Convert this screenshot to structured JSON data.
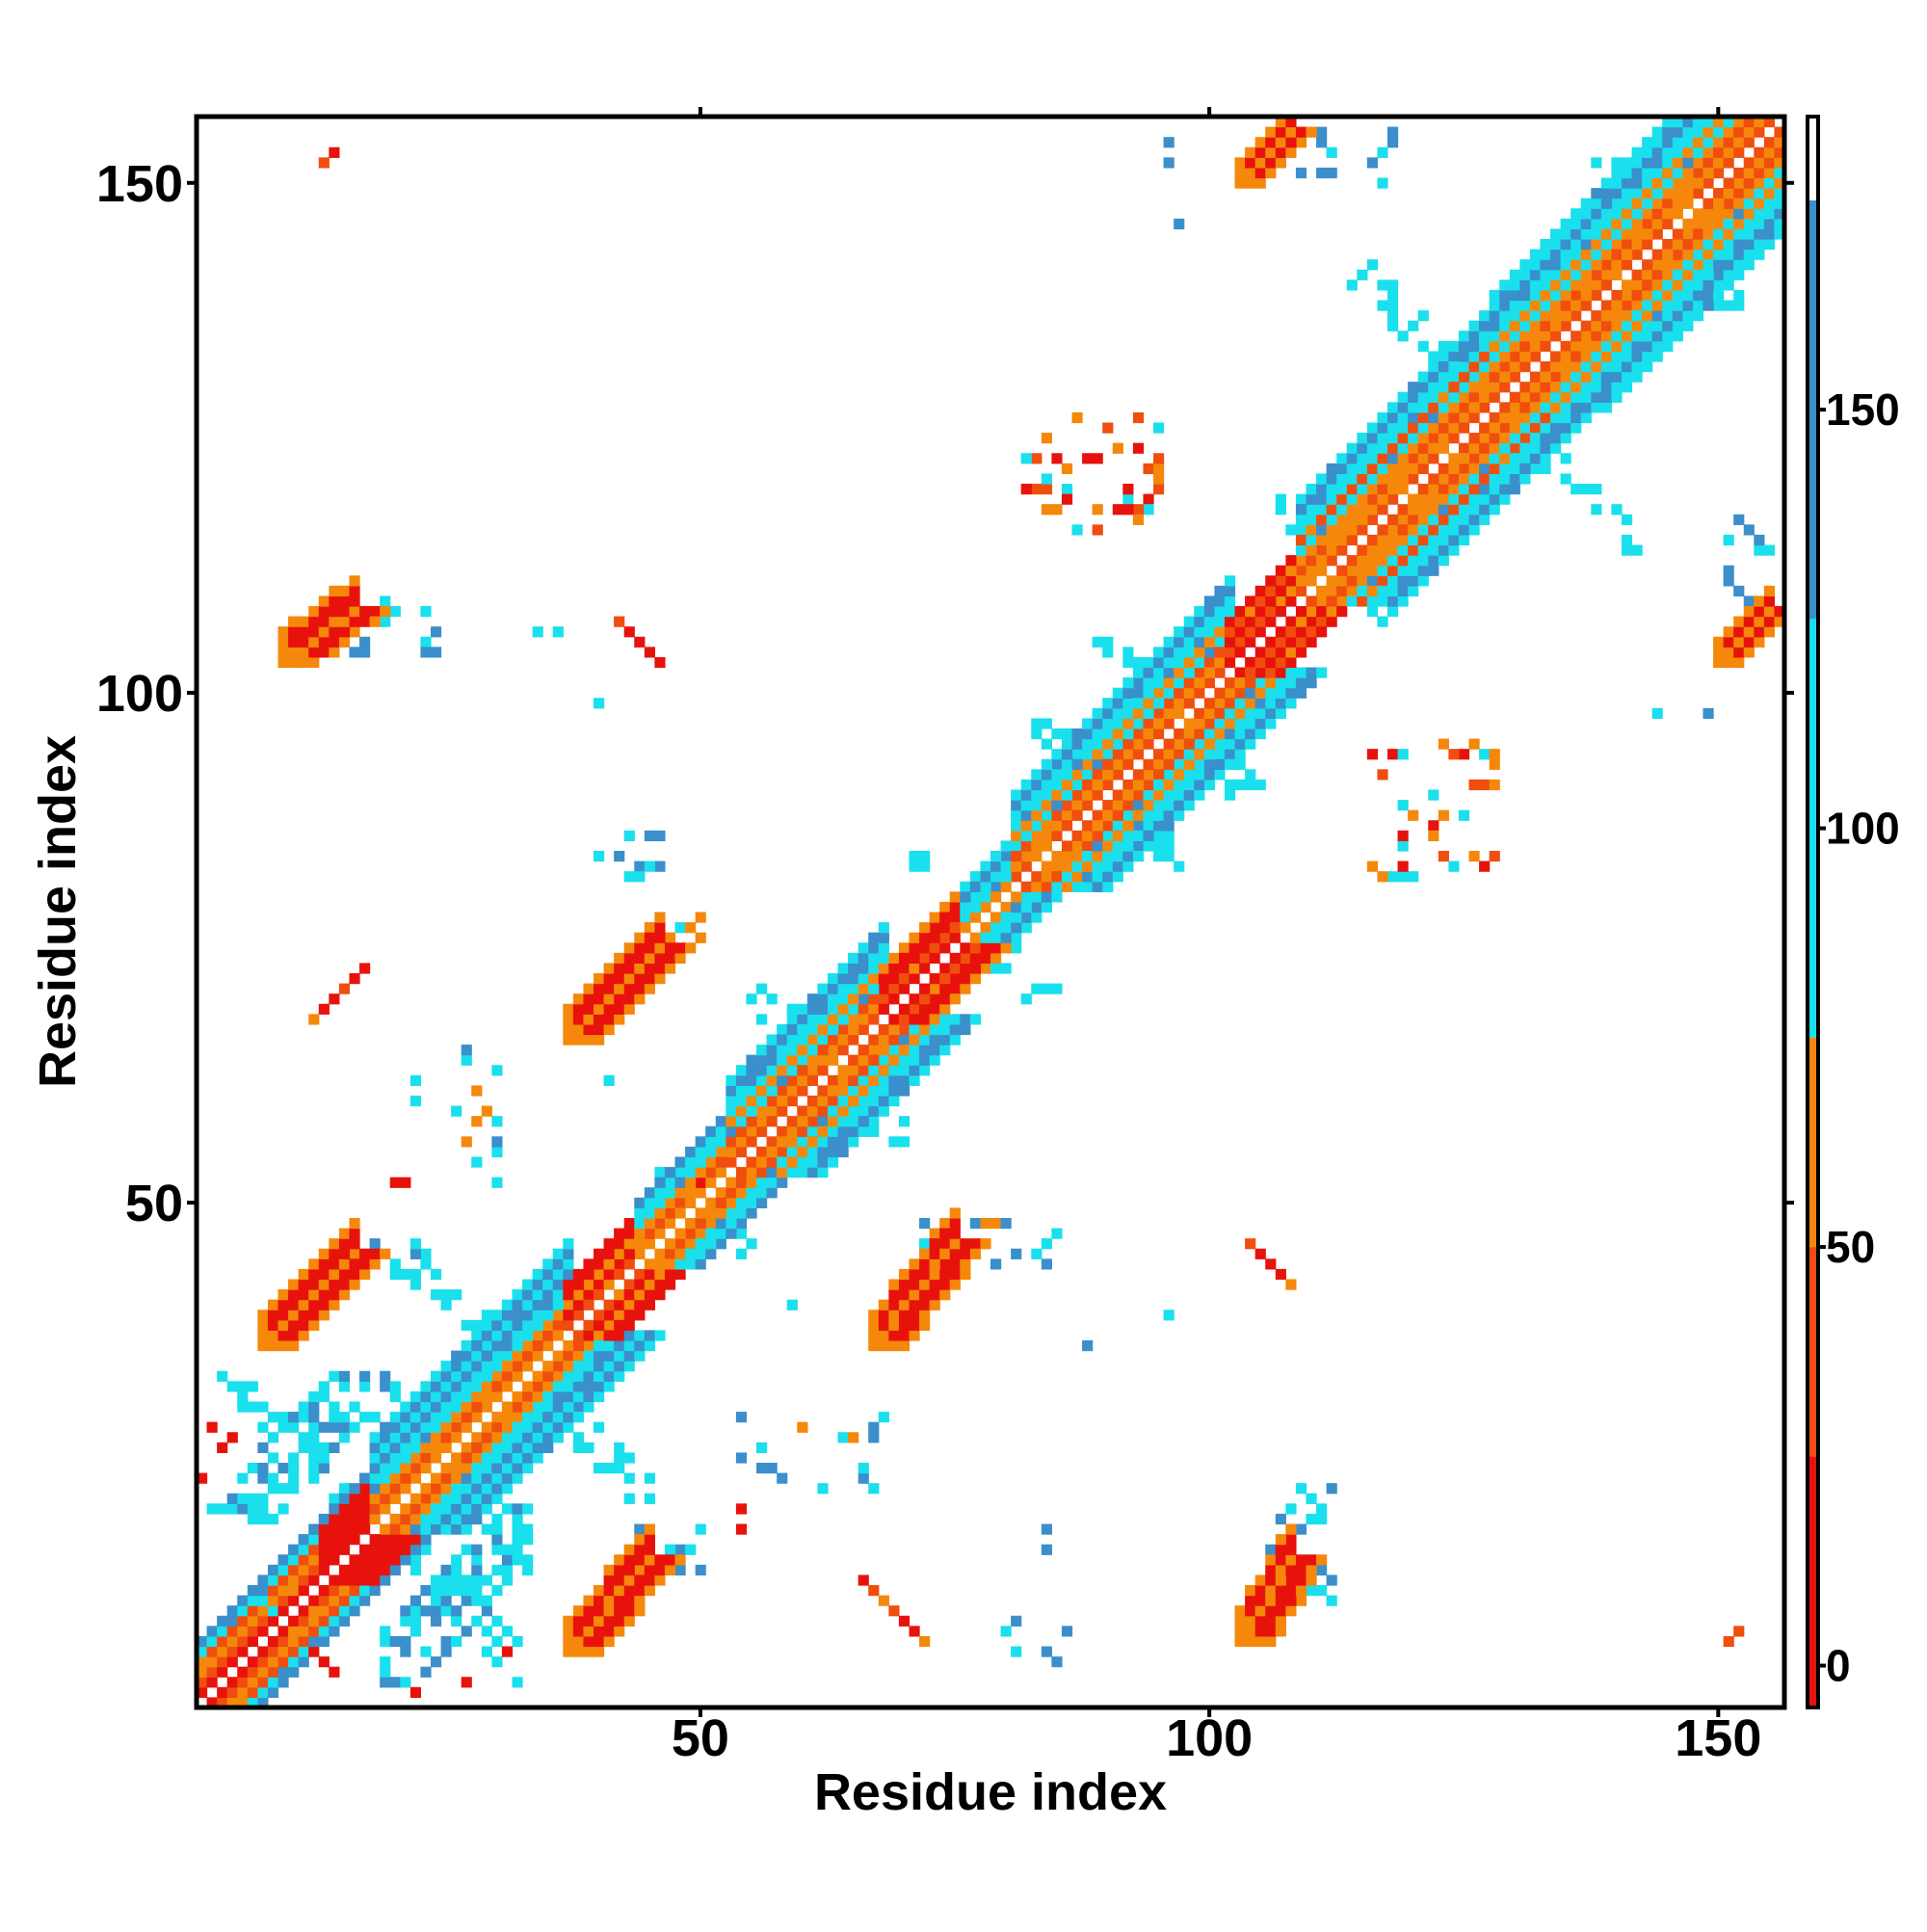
{
  "chart_data": {
    "type": "heatmap",
    "title": "",
    "xlabel": "Residue index",
    "ylabel": "Residue index",
    "xlim": [
      0.5,
      156.5
    ],
    "ylim": [
      0.5,
      156.5
    ],
    "x_ticks": [
      50,
      100,
      150
    ],
    "y_ticks": [
      50,
      100,
      150
    ],
    "colorbar": {
      "ticks": [
        0,
        50,
        100,
        150
      ],
      "range": [
        -5,
        185
      ],
      "segments": [
        {
          "from": -5,
          "to": 25,
          "color": "#e8120c"
        },
        {
          "from": 25,
          "to": 50,
          "color": "#f04e0e"
        },
        {
          "from": 50,
          "to": 75,
          "color": "#f5880a"
        },
        {
          "from": 75,
          "to": 125,
          "color": "#19e0ec"
        },
        {
          "from": 125,
          "to": 175,
          "color": "#3b8fcb"
        },
        {
          "from": 175,
          "to": 185,
          "color": "#ffffff"
        }
      ]
    },
    "palette": {
      "0": "#e8120c",
      "1": "#f04e0e",
      "2": "#f5880a",
      "3": "#19e0ec",
      "4": "#3b8fcb"
    },
    "diagonal": {
      "from": 1,
      "to": 156
    },
    "regions": [
      {
        "kind": "band",
        "x0": 1,
        "x1": 17,
        "offsets": [
          [
            1,
            0
          ],
          [
            2,
            1
          ],
          [
            3,
            2
          ],
          [
            4,
            1
          ],
          [
            5,
            3
          ],
          [
            6,
            4
          ]
        ]
      },
      {
        "kind": "band",
        "x0": 13,
        "x1": 17,
        "offsets": [
          [
            2,
            0
          ],
          [
            3,
            0
          ],
          [
            4,
            0
          ],
          [
            5,
            0
          ]
        ]
      },
      {
        "kind": "band",
        "x0": 18,
        "x1": 37,
        "offsets": [
          [
            1,
            2
          ],
          [
            2,
            1
          ],
          [
            3,
            2
          ],
          [
            4,
            3
          ],
          [
            5,
            3
          ],
          [
            6,
            4
          ],
          [
            7,
            3
          ],
          [
            8,
            4
          ],
          [
            9,
            3
          ]
        ]
      },
      {
        "kind": "band",
        "x0": 37,
        "x1": 43,
        "offsets": [
          [
            1,
            1
          ],
          [
            2,
            0
          ],
          [
            3,
            2
          ],
          [
            4,
            0
          ],
          [
            5,
            0
          ]
        ]
      },
      {
        "kind": "band",
        "x0": 44,
        "x1": 53,
        "offsets": [
          [
            1,
            2
          ],
          [
            2,
            1
          ],
          [
            3,
            2
          ],
          [
            4,
            3
          ],
          [
            5,
            3
          ],
          [
            6,
            4
          ]
        ]
      },
      {
        "kind": "band",
        "x0": 53,
        "x1": 68,
        "offsets": [
          [
            1,
            1
          ],
          [
            2,
            2
          ],
          [
            3,
            1
          ],
          [
            4,
            3
          ],
          [
            5,
            2
          ],
          [
            6,
            3
          ],
          [
            7,
            3
          ],
          [
            8,
            4
          ],
          [
            9,
            3
          ]
        ]
      },
      {
        "kind": "band",
        "x0": 68,
        "x1": 76,
        "offsets": [
          [
            1,
            0
          ],
          [
            2,
            1
          ],
          [
            3,
            0
          ],
          [
            4,
            0
          ],
          [
            5,
            2
          ]
        ]
      },
      {
        "kind": "band",
        "x0": 76,
        "x1": 81,
        "offsets": [
          [
            1,
            2
          ],
          [
            2,
            3
          ],
          [
            3,
            3
          ],
          [
            4,
            4
          ],
          [
            5,
            3
          ]
        ]
      },
      {
        "kind": "band",
        "x0": 81,
        "x1": 102,
        "offsets": [
          [
            1,
            1
          ],
          [
            2,
            2
          ],
          [
            3,
            1
          ],
          [
            4,
            3
          ],
          [
            5,
            2
          ],
          [
            6,
            3
          ],
          [
            7,
            3
          ],
          [
            8,
            4
          ],
          [
            9,
            3
          ]
        ]
      },
      {
        "kind": "band",
        "x0": 102,
        "x1": 109,
        "offsets": [
          [
            1,
            0
          ],
          [
            2,
            1
          ],
          [
            3,
            0
          ],
          [
            4,
            1
          ],
          [
            5,
            0
          ]
        ]
      },
      {
        "kind": "band",
        "x0": 109,
        "x1": 128,
        "offsets": [
          [
            1,
            1
          ],
          [
            2,
            2
          ],
          [
            3,
            1
          ],
          [
            4,
            2
          ],
          [
            5,
            3
          ],
          [
            6,
            1
          ],
          [
            7,
            3
          ],
          [
            8,
            3
          ],
          [
            9,
            4
          ],
          [
            10,
            3
          ]
        ]
      },
      {
        "kind": "band",
        "x0": 128,
        "x1": 156,
        "offsets": [
          [
            1,
            1
          ],
          [
            2,
            2
          ],
          [
            3,
            1
          ],
          [
            4,
            2
          ],
          [
            5,
            3
          ],
          [
            6,
            2
          ],
          [
            7,
            3
          ],
          [
            8,
            3
          ],
          [
            9,
            4
          ],
          [
            10,
            3
          ],
          [
            11,
            3
          ]
        ]
      },
      {
        "kind": "blob",
        "cx": 11,
        "cy": 26,
        "ax": 9,
        "ay": 7,
        "w": 4,
        "color": 3
      },
      {
        "kind": "blob",
        "cx": 26,
        "cy": 11,
        "ax": 7,
        "ay": 9,
        "w": 4,
        "color": 3
      },
      {
        "kind": "blob",
        "cx": 33,
        "cy": 33,
        "ax": 12,
        "ay": 12,
        "w": 3,
        "color": 3
      },
      {
        "kind": "blob",
        "cx": 50,
        "cy": 50,
        "ax": 5,
        "ay": 5,
        "w": 3,
        "color": 3
      },
      {
        "kind": "blob",
        "cx": 63,
        "cy": 63,
        "ax": 8,
        "ay": 8,
        "w": 4,
        "color": 3
      },
      {
        "kind": "blob",
        "cx": 77,
        "cy": 77,
        "ax": 8,
        "ay": 8,
        "w": 5,
        "color": 3
      },
      {
        "kind": "blob",
        "cx": 90,
        "cy": 90,
        "ax": 7,
        "ay": 7,
        "w": 4,
        "color": 3
      },
      {
        "kind": "blob",
        "cx": 97,
        "cy": 97,
        "ax": 8,
        "ay": 8,
        "w": 4,
        "color": 3
      },
      {
        "kind": "blob",
        "cx": 113,
        "cy": 113,
        "ax": 6,
        "ay": 6,
        "w": 4,
        "color": 3
      },
      {
        "kind": "blob",
        "cx": 128,
        "cy": 128,
        "ax": 14,
        "ay": 14,
        "w": 3,
        "color": 3
      },
      {
        "kind": "blob",
        "cx": 145,
        "cy": 145,
        "ax": 7,
        "ay": 7,
        "w": 4,
        "color": 3
      },
      {
        "kind": "strip",
        "x0": 37,
        "y0": 6,
        "x1": 45,
        "y1": 15,
        "w": 4,
        "fill": 0,
        "edge": 2
      },
      {
        "kind": "strip",
        "x0": 67,
        "y0": 36,
        "x1": 75,
        "y1": 46,
        "w": 4,
        "fill": 0,
        "edge": 2
      },
      {
        "kind": "strip",
        "x0": 37,
        "y0": 66,
        "x1": 46,
        "y1": 75,
        "w": 4,
        "fill": 0,
        "edge": 2
      },
      {
        "kind": "strip",
        "x0": 7,
        "y0": 36,
        "x1": 16,
        "y1": 45,
        "w": 4,
        "fill": 0,
        "edge": 2
      },
      {
        "kind": "strip",
        "x0": 103,
        "y0": 7,
        "x1": 108,
        "y1": 15,
        "w": 4,
        "fill": 0,
        "edge": 2
      },
      {
        "kind": "strip",
        "x0": 9,
        "y0": 103,
        "x1": 16,
        "y1": 108,
        "w": 4,
        "fill": 0,
        "edge": 2
      },
      {
        "kind": "strip",
        "x0": 103,
        "y0": 150,
        "x1": 108,
        "y1": 155,
        "w": 3,
        "fill": 0,
        "edge": 2
      },
      {
        "kind": "strip",
        "x0": 150,
        "y0": 103,
        "x1": 155,
        "y1": 108,
        "w": 3,
        "fill": 0,
        "edge": 2
      },
      {
        "kind": "sparse",
        "x0": 82,
        "y0": 116,
        "x1": 95,
        "y1": 128,
        "n": 40,
        "colors": [
          1,
          2,
          3,
          0
        ]
      },
      {
        "kind": "sparse",
        "x0": 115,
        "y0": 82,
        "x1": 128,
        "y1": 95,
        "n": 40,
        "colors": [
          1,
          2,
          3,
          0
        ]
      },
      {
        "kind": "sparse",
        "x0": 106,
        "y0": 10,
        "x1": 112,
        "y1": 22,
        "n": 22,
        "colors": [
          3,
          4
        ]
      },
      {
        "kind": "sparse",
        "x0": 44,
        "y0": 14,
        "x1": 50,
        "y1": 18,
        "n": 10,
        "colors": [
          3,
          4
        ]
      },
      {
        "kind": "sparse",
        "x0": 72,
        "y0": 44,
        "x1": 80,
        "y1": 48,
        "n": 12,
        "colors": [
          3,
          4,
          2
        ]
      },
      {
        "kind": "sparse",
        "x0": 45,
        "y0": 76,
        "x1": 50,
        "y1": 78,
        "n": 8,
        "colors": [
          3,
          2
        ]
      },
      {
        "kind": "sparse",
        "x0": 16,
        "y0": 43,
        "x1": 22,
        "y1": 46,
        "n": 8,
        "colors": [
          3,
          4
        ]
      },
      {
        "kind": "sparse",
        "x0": 16,
        "y0": 104,
        "x1": 24,
        "y1": 109,
        "n": 14,
        "colors": [
          3,
          4
        ]
      },
      {
        "kind": "sparse",
        "x0": 109,
        "y0": 150,
        "x1": 118,
        "y1": 155,
        "n": 12,
        "colors": [
          3,
          4
        ]
      },
      {
        "kind": "sparse",
        "x0": 150,
        "y0": 109,
        "x1": 155,
        "y1": 117,
        "n": 10,
        "colors": [
          3,
          4
        ]
      },
      {
        "kind": "sparse",
        "x0": 80,
        "y0": 44,
        "x1": 86,
        "y1": 48,
        "n": 8,
        "colors": [
          4,
          3
        ]
      },
      {
        "kind": "sparse",
        "x0": 40,
        "y0": 81,
        "x1": 46,
        "y1": 86,
        "n": 10,
        "colors": [
          4,
          3
        ]
      },
      {
        "kind": "sparse",
        "x0": 26,
        "y0": 52,
        "x1": 30,
        "y1": 66,
        "n": 14,
        "colors": [
          3,
          4,
          2
        ]
      },
      {
        "kind": "sparse",
        "x0": 54,
        "y0": 22,
        "x1": 68,
        "y1": 29,
        "n": 16,
        "colors": [
          3,
          4,
          2
        ]
      },
      {
        "kind": "sparse",
        "x0": 80,
        "y0": 5,
        "x1": 88,
        "y1": 10,
        "n": 6,
        "colors": [
          3,
          4
        ]
      }
    ],
    "points": [
      [
        14,
        4,
        0
      ],
      [
        13,
        5,
        0
      ],
      [
        12,
        6,
        0
      ],
      [
        11,
        7,
        1
      ],
      [
        10,
        8,
        2
      ],
      [
        9,
        9,
        3
      ],
      [
        8,
        10,
        3
      ],
      [
        7,
        11,
        3
      ],
      [
        66,
        13,
        0
      ],
      [
        67,
        12,
        1
      ],
      [
        68,
        11,
        2
      ],
      [
        69,
        10,
        1
      ],
      [
        70,
        9,
        0
      ],
      [
        71,
        8,
        0
      ],
      [
        72,
        7,
        2
      ],
      [
        104,
        46,
        1
      ],
      [
        105,
        45,
        0
      ],
      [
        106,
        44,
        0
      ],
      [
        107,
        43,
        0
      ],
      [
        108,
        42,
        2
      ],
      [
        46,
        103,
        0
      ],
      [
        45,
        104,
        0
      ],
      [
        44,
        105,
        0
      ],
      [
        43,
        106,
        0
      ],
      [
        42,
        107,
        1
      ],
      [
        13,
        69,
        0
      ],
      [
        14,
        70,
        0
      ],
      [
        15,
        71,
        1
      ],
      [
        16,
        72,
        0
      ],
      [
        17,
        73,
        0
      ],
      [
        12,
        68,
        2
      ],
      [
        13,
        152,
        1
      ],
      [
        14,
        153,
        0
      ],
      [
        2,
        28,
        0
      ],
      [
        3,
        26,
        0
      ],
      [
        4,
        27,
        0
      ],
      [
        1,
        23,
        0
      ],
      [
        22,
        2,
        0
      ],
      [
        27,
        3,
        0
      ],
      [
        31,
        6,
        0
      ],
      [
        28,
        9,
        3
      ],
      [
        29,
        8,
        3
      ],
      [
        54,
        18,
        0
      ],
      [
        54,
        20,
        0
      ],
      [
        152,
        8,
        1
      ],
      [
        151,
        7,
        1
      ],
      [
        50,
        52,
        0
      ],
      [
        52,
        52,
        1
      ],
      [
        54,
        54,
        2
      ],
      [
        20,
        52,
        0
      ],
      [
        21,
        52,
        0
      ],
      [
        96,
        154,
        4
      ],
      [
        96,
        152,
        4
      ],
      [
        97,
        146,
        4
      ],
      [
        144,
        98,
        3
      ],
      [
        149,
        98,
        4
      ],
      [
        40,
        99,
        3
      ],
      [
        34,
        106,
        3
      ],
      [
        36,
        106,
        3
      ],
      [
        41,
        62,
        3
      ],
      [
        84,
        16,
        4
      ],
      [
        84,
        18,
        4
      ],
      [
        88,
        36,
        4
      ],
      [
        96,
        39,
        3
      ],
      [
        59,
        40,
        3
      ],
      [
        22,
        62,
        3
      ],
      [
        22,
        60,
        3
      ],
      [
        29,
        59,
        2
      ]
    ]
  }
}
